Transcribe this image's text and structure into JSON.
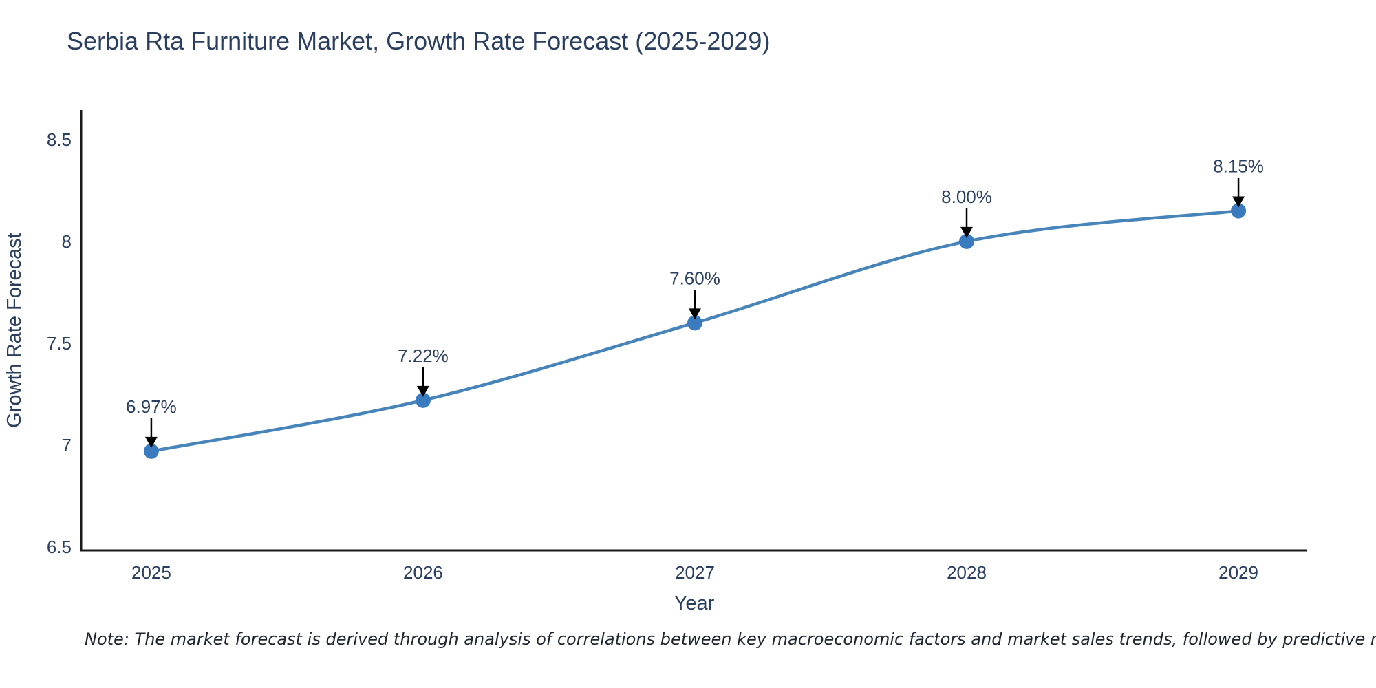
{
  "header": {
    "title": "Serbia Rta Furniture Market, Growth Rate Forecast (2025-2029)"
  },
  "footnote": {
    "text": "Note: The market forecast is derived through analysis of correlations between key macroeconomic factors and market sales trends, followed by predictive modeling to project future sales"
  },
  "chart_data": {
    "type": "line",
    "title": "Serbia Rta Furniture Market, Growth Rate Forecast (2025-2029)",
    "xlabel": "Year",
    "ylabel": "Growth Rate Forecast",
    "x": [
      2025,
      2026,
      2027,
      2028,
      2029
    ],
    "values": [
      6.97,
      7.22,
      7.6,
      8.0,
      8.15
    ],
    "point_labels": [
      "6.97%",
      "7.22%",
      "7.60%",
      "8.00%",
      "8.15%"
    ],
    "series": [
      {
        "name": "Growth Rate Forecast",
        "values": [
          6.97,
          7.22,
          7.6,
          8.0,
          8.15
        ]
      }
    ],
    "xtick_labels": [
      "2025",
      "2026",
      "2027",
      "2028",
      "2029"
    ],
    "yticks": [
      6.5,
      7,
      7.5,
      8,
      8.5
    ],
    "ytick_labels": [
      "6.5",
      "7",
      "7.5",
      "8",
      "8.5"
    ],
    "xlim": [
      2024.742,
      2029.253
    ],
    "ylim": [
      6.483,
      8.645
    ],
    "grid": false,
    "legend": "none",
    "line_shape": "spline",
    "annotation_style": "arrow-down-to-point",
    "colors": {
      "line": "#4784ba",
      "marker": "#3a7abf",
      "axis": "#1a1a1a",
      "tick_text": "#2a3f5f",
      "title_text": "#2a3f5f",
      "annotation_text": "#2a3f5f",
      "annotation_arrow": "#000000",
      "background": "#ffffff"
    }
  }
}
